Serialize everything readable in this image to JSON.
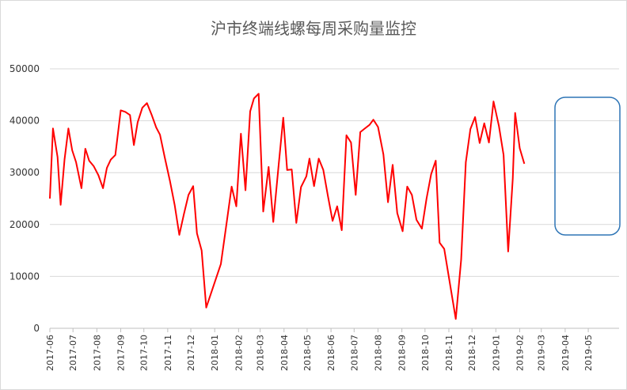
{
  "chart_data": {
    "type": "line",
    "title": "沪市终端线螺每周采购量监控",
    "xlabel": "",
    "ylabel": "",
    "ylim": [
      0,
      50000
    ],
    "yticks": [
      0,
      10000,
      20000,
      30000,
      40000,
      50000
    ],
    "xlim": [
      "2017-06-01",
      "2019-06-10"
    ],
    "xtick_labels": [
      "2017-06",
      "2017-07",
      "2017-08",
      "2017-09",
      "2017-10",
      "2017-11",
      "2017-12",
      "2018-01",
      "2018-02",
      "2018-03",
      "2018-04",
      "2018-05",
      "2018-06",
      "2018-07",
      "2018-08",
      "2018-09",
      "2018-10",
      "2018-11",
      "2018-12",
      "2019-01",
      "2019-02",
      "2019-03",
      "2019-04",
      "2019-05"
    ],
    "grid": "horizontal",
    "line_color": "#ff0000",
    "highlight_box_color": "#2e75b6",
    "series": [
      {
        "points": [
          [
            "2017-06-01",
            25000
          ],
          [
            "2017-06-05",
            38500
          ],
          [
            "2017-06-11",
            33000
          ],
          [
            "2017-06-15",
            23800
          ],
          [
            "2017-06-20",
            32500
          ],
          [
            "2017-06-25",
            38500
          ],
          [
            "2017-06-30",
            34300
          ],
          [
            "2017-07-05",
            32000
          ],
          [
            "2017-07-12",
            27000
          ],
          [
            "2017-07-17",
            34600
          ],
          [
            "2017-07-22",
            32300
          ],
          [
            "2017-07-28",
            31200
          ],
          [
            "2017-08-03",
            29500
          ],
          [
            "2017-08-09",
            27000
          ],
          [
            "2017-08-14",
            30900
          ],
          [
            "2017-08-19",
            32500
          ],
          [
            "2017-08-25",
            33400
          ],
          [
            "2017-09-01",
            42000
          ],
          [
            "2017-09-07",
            41700
          ],
          [
            "2017-09-13",
            41100
          ],
          [
            "2017-09-18",
            35300
          ],
          [
            "2017-09-23",
            39700
          ],
          [
            "2017-09-29",
            42500
          ],
          [
            "2017-10-05",
            43400
          ],
          [
            "2017-10-11",
            41200
          ],
          [
            "2017-10-17",
            38700
          ],
          [
            "2017-10-22",
            37300
          ],
          [
            "2017-10-28",
            33000
          ],
          [
            "2017-11-04",
            28300
          ],
          [
            "2017-11-10",
            23800
          ],
          [
            "2017-11-16",
            18000
          ],
          [
            "2017-11-22",
            22000
          ],
          [
            "2017-11-28",
            25700
          ],
          [
            "2017-12-04",
            27400
          ],
          [
            "2017-12-09",
            18300
          ],
          [
            "2017-12-15",
            15000
          ],
          [
            "2017-12-21",
            4000
          ],
          [
            "2018-01-09",
            12400
          ],
          [
            "2018-01-17",
            20900
          ],
          [
            "2018-01-23",
            27300
          ],
          [
            "2018-01-29",
            23500
          ],
          [
            "2018-02-04",
            37500
          ],
          [
            "2018-02-10",
            26600
          ],
          [
            "2018-02-16",
            41800
          ],
          [
            "2018-02-21",
            44300
          ],
          [
            "2018-02-27",
            45200
          ],
          [
            "2018-03-05",
            22500
          ],
          [
            "2018-03-12",
            31100
          ],
          [
            "2018-03-18",
            20500
          ],
          [
            "2018-03-25",
            31500
          ],
          [
            "2018-03-31",
            40600
          ],
          [
            "2018-04-05",
            30500
          ],
          [
            "2018-04-11",
            30600
          ],
          [
            "2018-04-17",
            20300
          ],
          [
            "2018-04-23",
            27200
          ],
          [
            "2018-04-30",
            29300
          ],
          [
            "2018-05-04",
            32700
          ],
          [
            "2018-05-10",
            27400
          ],
          [
            "2018-05-16",
            32700
          ],
          [
            "2018-05-22",
            30500
          ],
          [
            "2018-05-28",
            25500
          ],
          [
            "2018-06-03",
            20700
          ],
          [
            "2018-06-09",
            23500
          ],
          [
            "2018-06-15",
            18900
          ],
          [
            "2018-06-21",
            37200
          ],
          [
            "2018-06-27",
            35800
          ],
          [
            "2018-07-03",
            25700
          ],
          [
            "2018-07-09",
            37800
          ],
          [
            "2018-07-15",
            38500
          ],
          [
            "2018-07-21",
            39200
          ],
          [
            "2018-07-26",
            40200
          ],
          [
            "2018-08-01",
            38800
          ],
          [
            "2018-08-08",
            33500
          ],
          [
            "2018-08-14",
            24300
          ],
          [
            "2018-08-20",
            31500
          ],
          [
            "2018-08-26",
            22200
          ],
          [
            "2018-09-02",
            18700
          ],
          [
            "2018-09-08",
            27300
          ],
          [
            "2018-09-14",
            25700
          ],
          [
            "2018-09-20",
            20900
          ],
          [
            "2018-09-27",
            19200
          ],
          [
            "2018-10-03",
            25000
          ],
          [
            "2018-10-09",
            29700
          ],
          [
            "2018-10-15",
            32300
          ],
          [
            "2018-10-20",
            16500
          ],
          [
            "2018-10-26",
            15300
          ],
          [
            "2018-11-10",
            1800
          ],
          [
            "2018-11-17",
            13200
          ],
          [
            "2018-11-23",
            32000
          ],
          [
            "2018-11-29",
            38400
          ],
          [
            "2018-12-05",
            40700
          ],
          [
            "2018-12-11",
            35700
          ],
          [
            "2018-12-17",
            39500
          ],
          [
            "2018-12-23",
            35800
          ],
          [
            "2018-12-29",
            43700
          ],
          [
            "2019-01-05",
            39000
          ],
          [
            "2019-01-11",
            33400
          ],
          [
            "2019-01-17",
            14800
          ],
          [
            "2019-01-23",
            28800
          ],
          [
            "2019-01-26",
            41500
          ],
          [
            "2019-02-01",
            34700
          ],
          [
            "2019-02-07",
            31700
          ]
        ]
      }
    ]
  }
}
